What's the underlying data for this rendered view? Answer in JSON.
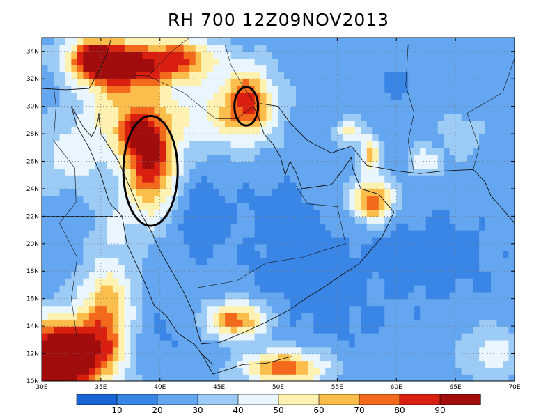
{
  "title": "RH 700  12Z09NOV2013",
  "map": {
    "lon_range": [
      30,
      70
    ],
    "lat_range": [
      10,
      35
    ],
    "lon_ticks": [
      "30E",
      "35E",
      "40E",
      "45E",
      "50E",
      "55E",
      "60E",
      "65E",
      "70E"
    ],
    "lat_ticks": [
      "10N",
      "12N",
      "14N",
      "16N",
      "18N",
      "20N",
      "22N",
      "24N",
      "26N",
      "28N",
      "30N",
      "32N",
      "34N"
    ],
    "grid": true,
    "annotations": [
      {
        "shape": "ellipse",
        "lon": 39.2,
        "lat": 25.3,
        "rx_deg": 2.3,
        "ry_deg": 4.0
      },
      {
        "shape": "ellipse",
        "lon": 47.3,
        "lat": 30.0,
        "rx_deg": 1.0,
        "ry_deg": 1.4
      }
    ]
  },
  "colorbar": {
    "labels": [
      "10",
      "20",
      "30",
      "40",
      "50",
      "60",
      "70",
      "80",
      "90"
    ],
    "colors": [
      "#1866d6",
      "#3a86e6",
      "#65a6f0",
      "#9ccbf6",
      "#e9f6ff",
      "#fff2b0",
      "#fbbe4d",
      "#f46a1c",
      "#d91f10",
      "#a10d0d"
    ]
  },
  "field": {
    "base_level": 2,
    "blobs": [
      {
        "lon": 30.5,
        "lat": 11.0,
        "rlon": 4.0,
        "rlat": 2.5,
        "v": 7.5
      },
      {
        "lon": 32.0,
        "lat": 12.5,
        "rlon": 3.0,
        "rlat": 2.5,
        "v": 4.5
      },
      {
        "lon": 35.5,
        "lat": 13.5,
        "rlon": 2.0,
        "rlat": 3.0,
        "v": 4.0
      },
      {
        "lon": 34.5,
        "lat": 33.5,
        "rlon": 2.5,
        "rlat": 1.5,
        "v": 6.0
      },
      {
        "lon": 37.5,
        "lat": 33.0,
        "rlon": 3.5,
        "rlat": 1.8,
        "v": 5.5
      },
      {
        "lon": 42.0,
        "lat": 33.5,
        "rlon": 3.0,
        "rlat": 1.5,
        "v": 4.5
      },
      {
        "lon": 39.2,
        "lat": 26.0,
        "rlon": 2.2,
        "rlat": 3.8,
        "v": 6.5
      },
      {
        "lon": 38.0,
        "lat": 28.0,
        "rlon": 1.5,
        "rlat": 1.5,
        "v": 3.0
      },
      {
        "lon": 47.5,
        "lat": 30.5,
        "rlon": 2.0,
        "rlat": 2.5,
        "v": 4.5
      },
      {
        "lon": 44.5,
        "lat": 29.5,
        "rlon": 5.0,
        "rlat": 2.5,
        "v": 2.5
      },
      {
        "lon": 32.5,
        "lat": 26.5,
        "rlon": 3.0,
        "rlat": 2.5,
        "v": 2.0
      },
      {
        "lon": 36.0,
        "lat": 30.0,
        "rlon": 3.0,
        "rlat": 3.0,
        "v": 2.5
      },
      {
        "lon": 46.5,
        "lat": 14.5,
        "rlon": 2.5,
        "rlat": 1.3,
        "v": 5.0
      },
      {
        "lon": 50.5,
        "lat": 11.0,
        "rlon": 3.5,
        "rlat": 1.3,
        "v": 5.0
      },
      {
        "lon": 58.0,
        "lat": 23.2,
        "rlon": 1.7,
        "rlat": 1.5,
        "v": 5.5
      },
      {
        "lon": 57.8,
        "lat": 26.5,
        "rlon": 0.8,
        "rlat": 1.2,
        "v": 4.0
      },
      {
        "lon": 56.0,
        "lat": 28.2,
        "rlon": 1.2,
        "rlat": 0.8,
        "v": 3.0
      },
      {
        "lon": 62.5,
        "lat": 26.0,
        "rlon": 1.3,
        "rlat": 1.0,
        "v": 2.5
      },
      {
        "lon": 65.5,
        "lat": 28.0,
        "rlon": 1.5,
        "rlat": 1.5,
        "v": 1.5
      },
      {
        "lon": 68.0,
        "lat": 12.0,
        "rlon": 2.5,
        "rlat": 2.0,
        "v": 2.0
      },
      {
        "lon": 36.0,
        "lat": 20.5,
        "rlon": 2.0,
        "rlat": 3.0,
        "v": 1.5
      },
      {
        "lon": 35.5,
        "lat": 16.5,
        "rlon": 2.5,
        "rlat": 2.0,
        "v": 2.0
      },
      {
        "lon": 43.5,
        "lat": 22.0,
        "rlon": 2.5,
        "rlat": 3.0,
        "v": -1.2
      },
      {
        "lon": 52.0,
        "lat": 18.5,
        "rlon": 4.5,
        "rlat": 3.0,
        "v": -1.2
      },
      {
        "lon": 63.0,
        "lat": 19.0,
        "rlon": 5.5,
        "rlat": 3.5,
        "v": -1.0
      },
      {
        "lon": 50.0,
        "lat": 23.0,
        "rlon": 3.0,
        "rlat": 2.0,
        "v": -0.8
      },
      {
        "lon": 40.0,
        "lat": 13.5,
        "rlon": 2.5,
        "rlat": 1.8,
        "v": -0.6
      },
      {
        "lon": 60.0,
        "lat": 32.0,
        "rlon": 3.0,
        "rlat": 2.0,
        "v": -0.6
      },
      {
        "lon": 55.0,
        "lat": 14.0,
        "rlon": 5.0,
        "rlat": 2.0,
        "v": -0.6
      }
    ]
  }
}
